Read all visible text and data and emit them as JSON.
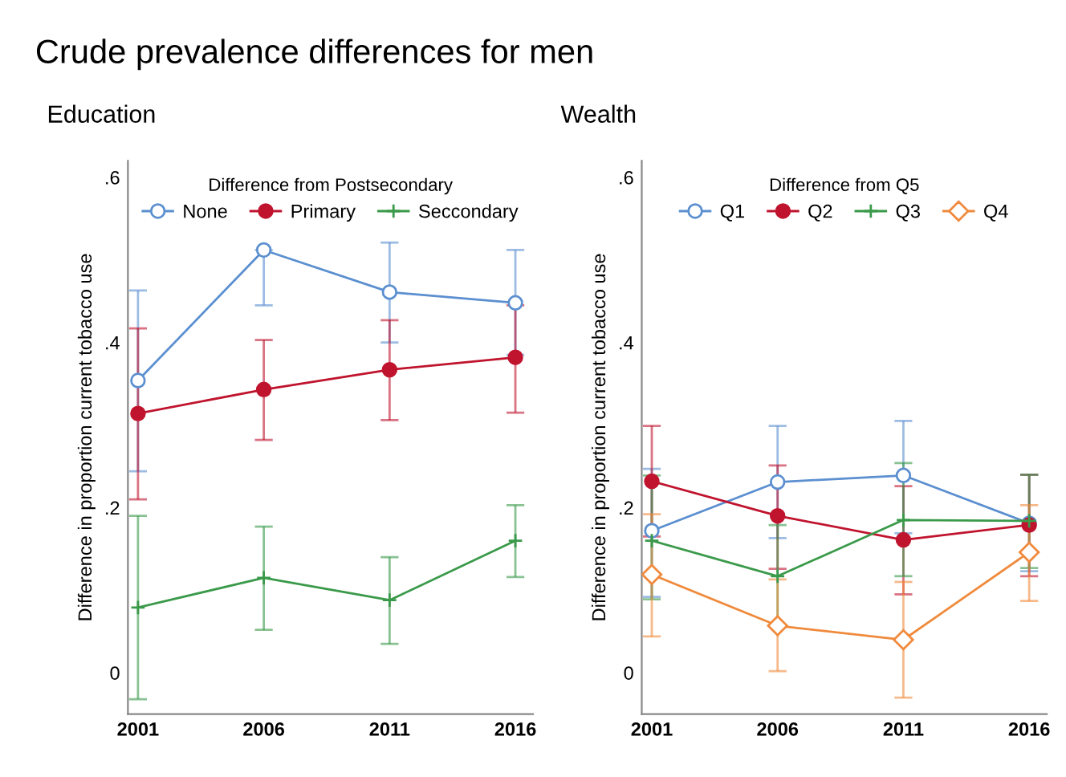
{
  "chart_data": [
    {
      "type": "line",
      "title": "Education",
      "annotations": [
        "Crude prevalence differences for men"
      ],
      "legend_title": "Difference from Postsecondary",
      "ylabel": "Difference in proportion current tobacco use",
      "x": [
        2001,
        2006,
        2011,
        2016
      ],
      "xlim": [
        2000.6,
        2016.7
      ],
      "xticks": [
        2001,
        2006,
        2011,
        2016
      ],
      "ylim": [
        -0.05,
        0.62
      ],
      "yticks": [
        {
          "value": 0,
          "label": "0"
        },
        {
          "value": 0.2,
          "label": ".2"
        },
        {
          "value": 0.4,
          "label": ".4"
        },
        {
          "value": 0.6,
          "label": ".6"
        }
      ],
      "grid": false,
      "legend": "top",
      "series": [
        {
          "name": "None",
          "color": "#5b8fd0",
          "marker": "circle",
          "values": [
            0.354,
            0.512,
            0.461,
            0.448
          ],
          "errors": [
            [
              0.244,
              0.463
            ],
            [
              0.445,
              0.512
            ],
            [
              0.4,
              0.521
            ],
            [
              0.385,
              0.512
            ]
          ]
        },
        {
          "name": "Primary",
          "color": "#c0142e",
          "marker": "circle",
          "values": [
            0.314,
            0.343,
            0.367,
            0.382
          ],
          "errors": [
            [
              0.21,
              0.417
            ],
            [
              0.282,
              0.403
            ],
            [
              0.306,
              0.427
            ],
            [
              0.315,
              0.445
            ]
          ]
        },
        {
          "name": "Seccondary",
          "color": "#3a9a4a",
          "marker": "cross",
          "values": [
            0.079,
            0.115,
            0.088,
            0.16
          ],
          "errors": [
            [
              -0.032,
              0.19
            ],
            [
              0.052,
              0.177
            ],
            [
              0.035,
              0.14
            ],
            [
              0.116,
              0.203
            ]
          ]
        }
      ]
    },
    {
      "type": "line",
      "title": "Wealth",
      "legend_title": "Difference from Q5",
      "ylabel": "Difference in proportion current tobacco use",
      "x": [
        2001,
        2006,
        2011,
        2016
      ],
      "xlim": [
        2000.6,
        2016.7
      ],
      "xticks": [
        2001,
        2006,
        2011,
        2016
      ],
      "ylim": [
        -0.05,
        0.62
      ],
      "yticks": [
        {
          "value": 0,
          "label": "0"
        },
        {
          "value": 0.2,
          "label": ".2"
        },
        {
          "value": 0.4,
          "label": ".4"
        },
        {
          "value": 0.6,
          "label": ".6"
        }
      ],
      "grid": false,
      "legend": "top",
      "series": [
        {
          "name": "Q1",
          "color": "#5b8fd0",
          "marker": "circle",
          "values": [
            0.172,
            0.231,
            0.239,
            0.181
          ],
          "errors": [
            [
              0.092,
              0.247
            ],
            [
              0.163,
              0.299
            ],
            [
              0.169,
              0.305
            ],
            [
              0.123,
              0.24
            ]
          ]
        },
        {
          "name": "Q2",
          "color": "#c0142e",
          "marker": "circle",
          "values": [
            0.232,
            0.19,
            0.161,
            0.179
          ],
          "errors": [
            [
              0.165,
              0.299
            ],
            [
              0.126,
              0.251
            ],
            [
              0.095,
              0.226
            ],
            [
              0.117,
              0.24
            ]
          ]
        },
        {
          "name": "Q3",
          "color": "#3a9a4a",
          "marker": "cross",
          "values": [
            0.16,
            0.117,
            0.185,
            0.184
          ],
          "errors": [
            [
              0.089,
              0.239
            ],
            [
              0.058,
              0.179
            ],
            [
              0.117,
              0.254
            ],
            [
              0.127,
              0.24
            ]
          ]
        },
        {
          "name": "Q4",
          "color": "#f08a3c",
          "marker": "diamond",
          "values": [
            0.119,
            0.057,
            0.04,
            0.146
          ],
          "errors": [
            [
              0.044,
              0.192
            ],
            [
              0.002,
              0.113
            ],
            [
              -0.03,
              0.11
            ],
            [
              0.087,
              0.203
            ]
          ]
        }
      ]
    }
  ]
}
